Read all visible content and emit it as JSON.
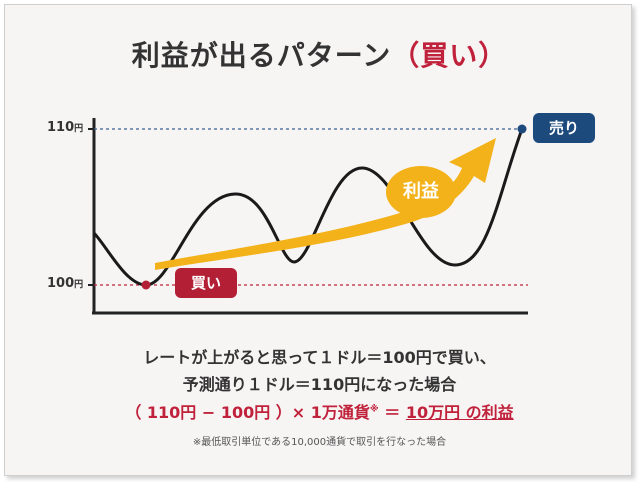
{
  "title": {
    "main": "利益が出るパターン",
    "accent": "（買い）"
  },
  "y_axis": {
    "label_high": "110",
    "label_low": "100",
    "unit": "円"
  },
  "badges": {
    "buy": "買い",
    "sell": "売り",
    "profit": "利益"
  },
  "explanation": {
    "line1": "レートが上がると思って１ドル＝100円で買い、",
    "line2": "予測通り１ドル＝110円になった場合",
    "line3_part1": "（ 110円 − 100円 ）× 1万通貨",
    "line3_mark": "※",
    "line3_part2": " ＝ ",
    "line3_part3": "10万円 の利益"
  },
  "footnote": "※最低取引単位である10,000通貨で取引を行なった場合",
  "colors": {
    "accent_red": "#c0213b",
    "buy_red": "#b31f35",
    "sell_blue": "#1d4a7d",
    "arrow_yellow": "#f3b219"
  },
  "chart_data": {
    "type": "line",
    "ylim": [
      100,
      110
    ],
    "buy_price": 100,
    "sell_price": 110
  }
}
